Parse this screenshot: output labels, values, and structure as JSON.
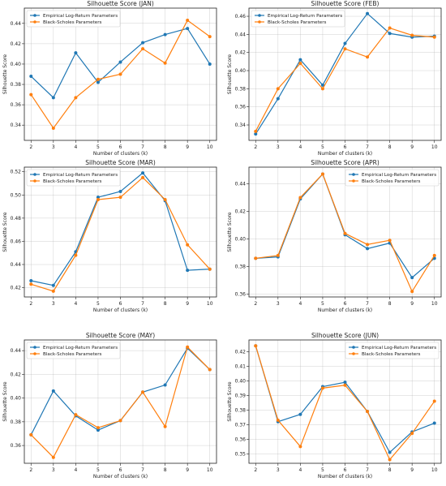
{
  "colors": {
    "empirical": "#1f77b4",
    "bs": "#ff7f0e"
  },
  "chart_data": [
    {
      "type": "line",
      "title": "Silhouette Score (JAN)",
      "xlabel": "Number of clusters (k)",
      "ylabel": "Silhouette Score",
      "x": [
        2,
        3,
        4,
        5,
        6,
        7,
        8,
        9,
        10
      ],
      "xlim": [
        1.7,
        10.3
      ],
      "ylim": [
        0.325,
        0.455
      ],
      "yticks": [
        0.34,
        0.36,
        0.38,
        0.4,
        0.42,
        0.44
      ],
      "yticks_labels": [
        "0.34",
        "0.36",
        "0.38",
        "0.40",
        "0.42",
        "0.44"
      ],
      "grid": true,
      "legend": "top-left",
      "series": [
        {
          "name": "Empirical Log-Return Parameters",
          "values": [
            0.388,
            0.367,
            0.411,
            0.382,
            0.402,
            0.421,
            0.429,
            0.435,
            0.4
          ]
        },
        {
          "name": "Black-Scholes Parameters",
          "values": [
            0.37,
            0.337,
            0.367,
            0.385,
            0.39,
            0.415,
            0.401,
            0.443,
            0.427
          ]
        }
      ]
    },
    {
      "type": "line",
      "title": "Silhouette Score (FEB)",
      "xlabel": "Number of clusters (k)",
      "ylabel": "Silhouette Score",
      "x": [
        2,
        3,
        4,
        5,
        6,
        7,
        8,
        9,
        10
      ],
      "xlim": [
        1.7,
        10.3
      ],
      "ylim": [
        0.323,
        0.469
      ],
      "yticks": [
        0.34,
        0.36,
        0.38,
        0.4,
        0.42,
        0.44,
        0.46
      ],
      "yticks_labels": [
        "0.34",
        "0.36",
        "0.38",
        "0.40",
        "0.42",
        "0.44",
        "0.46"
      ],
      "grid": true,
      "legend": "top-left",
      "series": [
        {
          "name": "Empirical Log-Return Parameters",
          "values": [
            0.33,
            0.369,
            0.412,
            0.384,
            0.43,
            0.463,
            0.441,
            0.437,
            0.438
          ]
        },
        {
          "name": "Black-Scholes Parameters",
          "values": [
            0.333,
            0.38,
            0.408,
            0.38,
            0.424,
            0.415,
            0.447,
            0.439,
            0.437
          ]
        }
      ]
    },
    {
      "type": "line",
      "title": "Silhouette Score (MAR)",
      "xlabel": "Number of clusters (k)",
      "ylabel": "Silhouette Score",
      "x": [
        2,
        3,
        4,
        5,
        6,
        7,
        8,
        9,
        10
      ],
      "xlim": [
        1.7,
        10.3
      ],
      "ylim": [
        0.412,
        0.524
      ],
      "yticks": [
        0.42,
        0.44,
        0.46,
        0.48,
        0.5,
        0.52
      ],
      "yticks_labels": [
        "0.42",
        "0.44",
        "0.46",
        "0.48",
        "0.50",
        "0.52"
      ],
      "grid": true,
      "legend": "top-left",
      "series": [
        {
          "name": "Empirical Log-Return Parameters",
          "values": [
            0.426,
            0.422,
            0.451,
            0.498,
            0.503,
            0.519,
            0.495,
            0.435,
            0.436
          ]
        },
        {
          "name": "Black-Scholes Parameters",
          "values": [
            0.423,
            0.417,
            0.448,
            0.496,
            0.498,
            0.515,
            0.496,
            0.457,
            0.436
          ]
        }
      ]
    },
    {
      "type": "line",
      "title": "Silhouette Score (APR)",
      "xlabel": "Number of clusters (k)",
      "ylabel": "Silhouette Score",
      "x": [
        2,
        3,
        4,
        5,
        6,
        7,
        8,
        9,
        10
      ],
      "xlim": [
        1.7,
        10.3
      ],
      "ylim": [
        0.358,
        0.452
      ],
      "yticks": [
        0.36,
        0.38,
        0.4,
        0.42,
        0.44
      ],
      "yticks_labels": [
        "0.36",
        "0.38",
        "0.40",
        "0.42",
        "0.44"
      ],
      "grid": true,
      "legend": "top-right",
      "series": [
        {
          "name": "Empirical Log-Return Parameters",
          "values": [
            0.386,
            0.387,
            0.429,
            0.447,
            0.403,
            0.393,
            0.397,
            0.372,
            0.386
          ]
        },
        {
          "name": "Black-Scholes Parameters",
          "values": [
            0.386,
            0.388,
            0.43,
            0.447,
            0.404,
            0.396,
            0.399,
            0.362,
            0.388
          ]
        }
      ]
    },
    {
      "type": "line",
      "title": "Silhouette Score (MAY)",
      "xlabel": "Number of clusters (k)",
      "ylabel": "Silhouette Score",
      "x": [
        2,
        3,
        4,
        5,
        6,
        7,
        8,
        9,
        10
      ],
      "xlim": [
        1.7,
        10.3
      ],
      "ylim": [
        0.345,
        0.449
      ],
      "yticks": [
        0.36,
        0.38,
        0.4,
        0.42,
        0.44
      ],
      "yticks_labels": [
        "0.36",
        "0.38",
        "0.40",
        "0.42",
        "0.44"
      ],
      "grid": true,
      "legend": "top-left",
      "series": [
        {
          "name": "Empirical Log-Return Parameters",
          "values": [
            0.369,
            0.406,
            0.385,
            0.373,
            0.381,
            0.405,
            0.411,
            0.442,
            0.424
          ]
        },
        {
          "name": "Black-Scholes Parameters",
          "values": [
            0.369,
            0.35,
            0.386,
            0.375,
            0.381,
            0.405,
            0.376,
            0.443,
            0.424
          ]
        }
      ]
    },
    {
      "type": "line",
      "title": "Silhouette Score (JUN)",
      "xlabel": "Number of clusters (k)",
      "ylabel": "Silhouette Score",
      "x": [
        2,
        3,
        4,
        5,
        6,
        7,
        8,
        9,
        10
      ],
      "xlim": [
        1.7,
        10.3
      ],
      "ylim": [
        0.3435,
        0.428
      ],
      "yticks": [
        0.35,
        0.36,
        0.37,
        0.38,
        0.39,
        0.4,
        0.41,
        0.42
      ],
      "yticks_labels": [
        "0.35",
        "0.36",
        "0.37",
        "0.38",
        "0.39",
        "0.40",
        "0.41",
        "0.42"
      ],
      "grid": true,
      "legend": "top-right",
      "series": [
        {
          "name": "Empirical Log-Return Parameters",
          "values": [
            0.424,
            0.372,
            0.377,
            0.396,
            0.399,
            0.379,
            0.351,
            0.365,
            0.371
          ]
        },
        {
          "name": "Black-Scholes Parameters",
          "values": [
            0.424,
            0.373,
            0.355,
            0.395,
            0.397,
            0.379,
            0.346,
            0.364,
            0.386
          ]
        }
      ]
    }
  ]
}
